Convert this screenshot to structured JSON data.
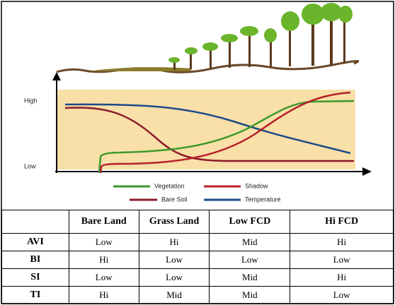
{
  "diagram": {
    "axis_high": "High",
    "axis_low": "Low",
    "legend": [
      "Vegetation",
      "Shadow",
      "Bare Soil",
      "Temperature"
    ]
  },
  "table": {
    "columns": [
      "Bare Land",
      "Grass Land",
      "Low FCD",
      "Hi FCD"
    ],
    "rows": [
      [
        "AVI",
        "Low",
        "Hi",
        "Mid",
        "Hi"
      ],
      [
        "BI",
        "Hi",
        "Low",
        "Low",
        "Low"
      ],
      [
        "SI",
        "Low",
        "Low",
        "Mid",
        "Hi"
      ],
      [
        "TI",
        "Hi",
        "Mid",
        "Mid",
        "Low"
      ]
    ]
  }
}
